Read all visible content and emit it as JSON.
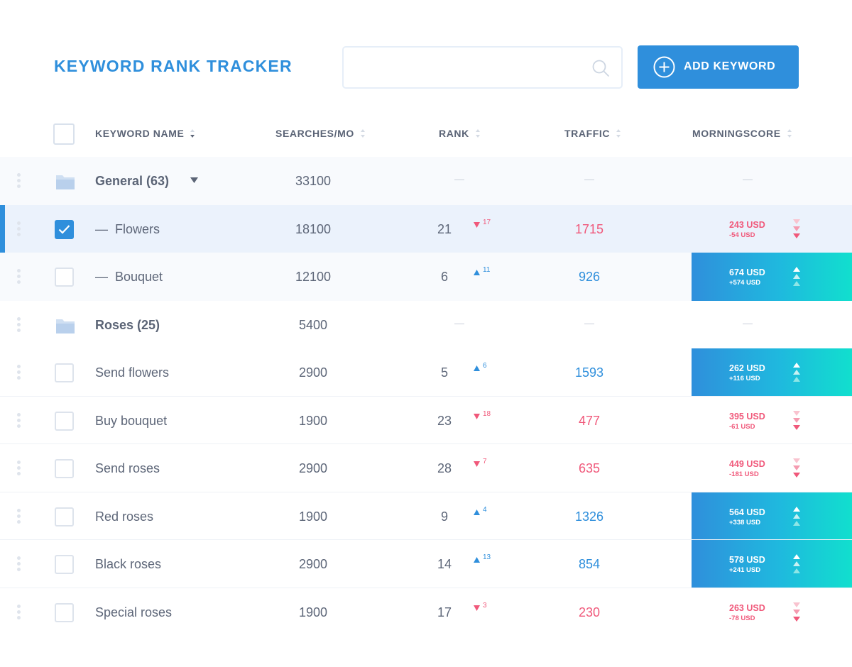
{
  "header": {
    "title": "KEYWORD RANK TRACKER",
    "search_placeholder": "",
    "add_button_label": "ADD KEYWORD"
  },
  "columns": {
    "keyword_name": "KEYWORD NAME",
    "searches": "SEARCHES/MO",
    "rank": "RANK",
    "traffic": "TRAFFIC",
    "morningscore": "MORNINGSCORE"
  },
  "colors": {
    "accent": "#2f8fdc",
    "positive": "#2f8fdc",
    "negative": "#f0587a",
    "gradient_end": "#11dfce"
  },
  "rows": [
    {
      "type": "group",
      "name": "General (63)",
      "searches": "33100",
      "expanded": true
    },
    {
      "type": "keyword",
      "name": "Flowers",
      "child": true,
      "checked": true,
      "searches": "18100",
      "rank": "21",
      "rank_change": "17",
      "direction": "down",
      "traffic": "1715",
      "score": "243 USD",
      "score_change": "-54 USD"
    },
    {
      "type": "keyword",
      "name": "Bouquet",
      "child": true,
      "checked": false,
      "searches": "12100",
      "rank": "6",
      "rank_change": "11",
      "direction": "up",
      "traffic": "926",
      "score": "674 USD",
      "score_change": "+574 USD"
    },
    {
      "type": "group",
      "name": "Roses (25)",
      "searches": "5400",
      "expanded": false
    },
    {
      "type": "keyword",
      "name": "Send flowers",
      "child": false,
      "checked": false,
      "searches": "2900",
      "rank": "5",
      "rank_change": "6",
      "direction": "up",
      "traffic": "1593",
      "score": "262 USD",
      "score_change": "+116  USD"
    },
    {
      "type": "keyword",
      "name": "Buy bouquet",
      "child": false,
      "checked": false,
      "searches": "1900",
      "rank": "23",
      "rank_change": "18",
      "direction": "down",
      "traffic": "477",
      "score": "395 USD",
      "score_change": "-61  USD"
    },
    {
      "type": "keyword",
      "name": "Send roses",
      "child": false,
      "checked": false,
      "searches": "2900",
      "rank": "28",
      "rank_change": "7",
      "direction": "down",
      "traffic": "635",
      "score": "449 USD",
      "score_change": "-181 USD"
    },
    {
      "type": "keyword",
      "name": "Red roses",
      "child": false,
      "checked": false,
      "searches": "1900",
      "rank": "9",
      "rank_change": "4",
      "direction": "up",
      "traffic": "1326",
      "score": "564 USD",
      "score_change": "+338 USD"
    },
    {
      "type": "keyword",
      "name": "Black roses",
      "child": false,
      "checked": false,
      "searches": "2900",
      "rank": "14",
      "rank_change": "13",
      "direction": "up",
      "traffic": "854",
      "score": "578 USD",
      "score_change": "+241  USD"
    },
    {
      "type": "keyword",
      "name": "Special roses",
      "child": false,
      "checked": false,
      "searches": "1900",
      "rank": "17",
      "rank_change": "3",
      "direction": "down",
      "traffic": "230",
      "score": "263 USD",
      "score_change": "-78 USD"
    }
  ]
}
